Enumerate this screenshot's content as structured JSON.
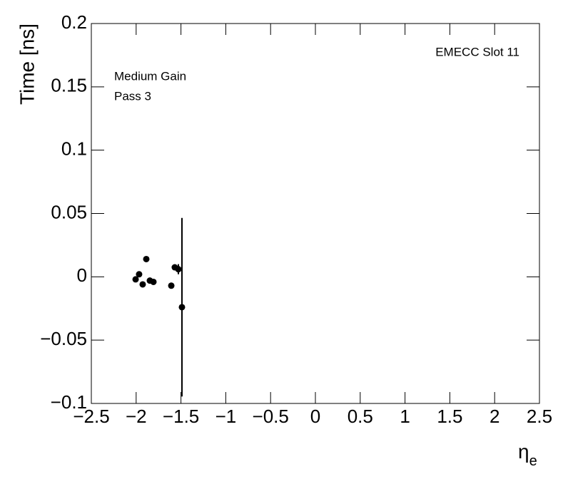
{
  "chart_data": {
    "type": "scatter",
    "annotations": [
      "EMECC Slot 11",
      "Medium Gain",
      "Pass 3"
    ],
    "x_label": [
      "η",
      "e"
    ],
    "y_label": "Time [ns]",
    "xlim": [
      -2.5,
      2.5
    ],
    "ylim": [
      -0.1,
      0.2
    ],
    "xticks": [
      {
        "value": -2.5,
        "label": "−2.5"
      },
      {
        "value": -2,
        "label": "−2"
      },
      {
        "value": -1.5,
        "label": "−1.5"
      },
      {
        "value": -1,
        "label": "−1"
      },
      {
        "value": -0.5,
        "label": "−0.5"
      },
      0,
      0.5,
      1,
      1.5,
      2,
      2.5
    ],
    "yticks": [
      {
        "value": -0.1,
        "label": "−0.1"
      },
      {
        "value": -0.05,
        "label": "−0.05"
      },
      0,
      0.05,
      0.1,
      0.15,
      0.2
    ],
    "series": [
      {
        "color": "#000000",
        "x": [
          -2.006,
          -1.967,
          -1.927,
          -1.887,
          -1.847,
          -1.807,
          -1.608,
          -1.569,
          -1.529,
          -1.489
        ],
        "values": [
          -0.002,
          0.002,
          -0.006,
          0.014,
          -0.003,
          -0.004,
          -0.007,
          0.0075,
          0.006,
          -0.024
        ],
        "errors": [
          null,
          null,
          null,
          null,
          null,
          null,
          null,
          null,
          0.004,
          0.0705
        ]
      }
    ]
  }
}
